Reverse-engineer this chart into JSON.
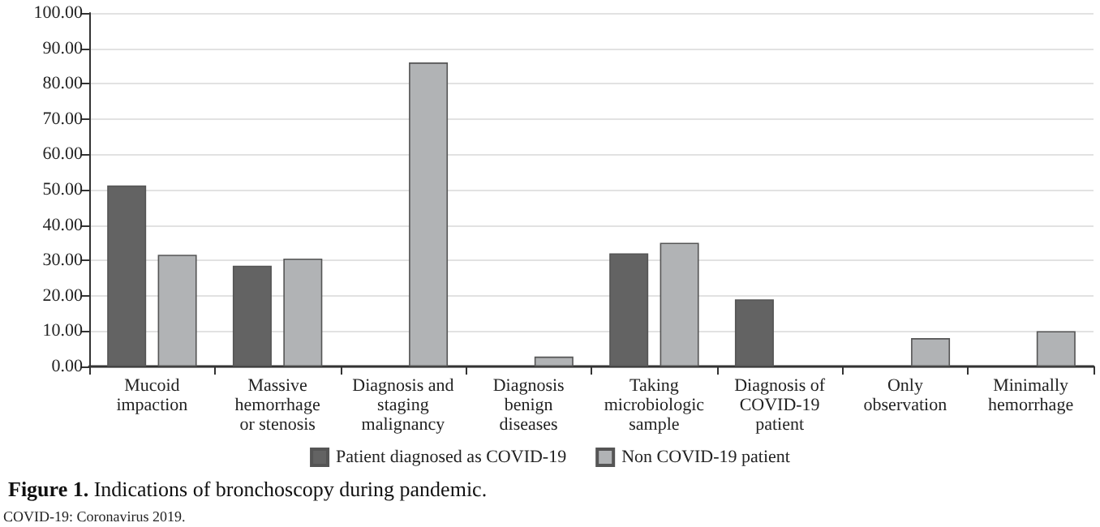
{
  "chart_data": {
    "type": "bar",
    "title": "Figure 1. Indications of bronchoscopy during pandemic.",
    "annotations": [
      "COVID-19: Coronavirus 2019."
    ],
    "categories": [
      "Mucoid\nimpaction",
      "Massive\nhemorrhage\nor stenosis",
      "Diagnosis and\nstaging\nmalignancy",
      "Diagnosis\nbenign\ndiseases",
      "Taking\nmicrobiologic\nsample",
      "Diagnosis of\nCOVID-19\npatient",
      "Only\nobservation",
      "Minimally\nhemorrhage"
    ],
    "series": [
      {
        "name": "Patient diagnosed as COVID-19",
        "color": "#636363",
        "values": [
          51.2,
          28.5,
          null,
          null,
          32,
          19,
          null,
          null
        ]
      },
      {
        "name": "Non COVID-19 patient",
        "color": "#b1b3b5",
        "values": [
          31.6,
          30.5,
          86,
          2.8,
          35,
          null,
          8,
          10
        ]
      }
    ],
    "ylim": [
      0,
      100
    ],
    "yticks": [
      {
        "value": 0,
        "label": "0.00"
      },
      {
        "value": 10,
        "label": "10.00"
      },
      {
        "value": 20,
        "label": "20.00"
      },
      {
        "value": 30,
        "label": "30.00"
      },
      {
        "value": 40,
        "label": "40.00"
      },
      {
        "value": 50,
        "label": "50.00"
      },
      {
        "value": 60,
        "label": "60.00"
      },
      {
        "value": 70,
        "label": "70.00"
      },
      {
        "value": 80,
        "label": "80.00"
      },
      {
        "value": 90,
        "label": "90.00"
      },
      {
        "value": 100,
        "label": "100.00"
      }
    ],
    "grid": "y",
    "legend": "bottom"
  }
}
